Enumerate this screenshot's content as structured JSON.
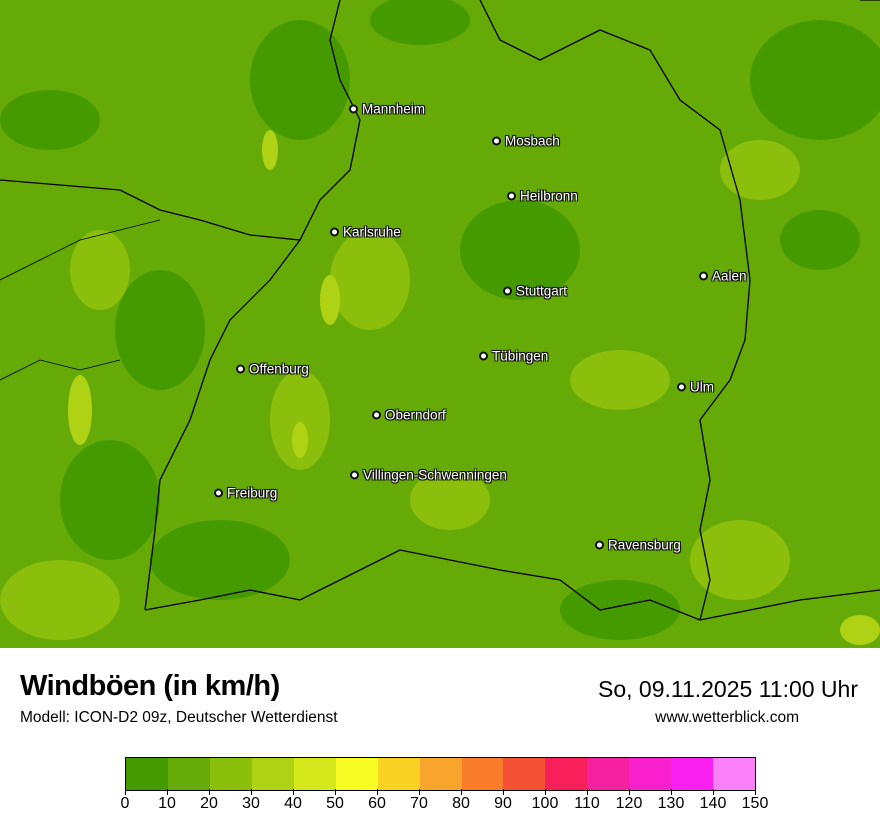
{
  "map": {
    "cities": [
      "Mannheim",
      "Mosbach",
      "Heilbronn",
      "Karlsruhe",
      "Aalen",
      "Stuttgart",
      "Tübingen",
      "Offenburg",
      "Ulm",
      "Oberndorf",
      "Villingen-Schwenningen",
      "Freiburg",
      "Ravensburg"
    ]
  },
  "header": {
    "title": "Windböen (in km/h)",
    "subtitle": "Modell: ICON-D2 09z, Deutscher Wetterdienst",
    "datetime": "So, 09.11.2025 11:00 Uhr",
    "website": "www.wetterblick.com"
  },
  "legend": {
    "unit": "km/h",
    "ticks": [
      "0",
      "10",
      "20",
      "30",
      "40",
      "50",
      "60",
      "70",
      "80",
      "90",
      "100",
      "110",
      "120",
      "130",
      "140",
      "150"
    ],
    "colors": [
      "#459a00",
      "#66aa08",
      "#8bbf0c",
      "#b0d214",
      "#d5e81c",
      "#f8fb24",
      "#fad224",
      "#f7a52d",
      "#f87c2a",
      "#f55135",
      "#f8205a",
      "#f521a0",
      "#f81fcc",
      "#f81ff0",
      "#fa80f8"
    ]
  }
}
